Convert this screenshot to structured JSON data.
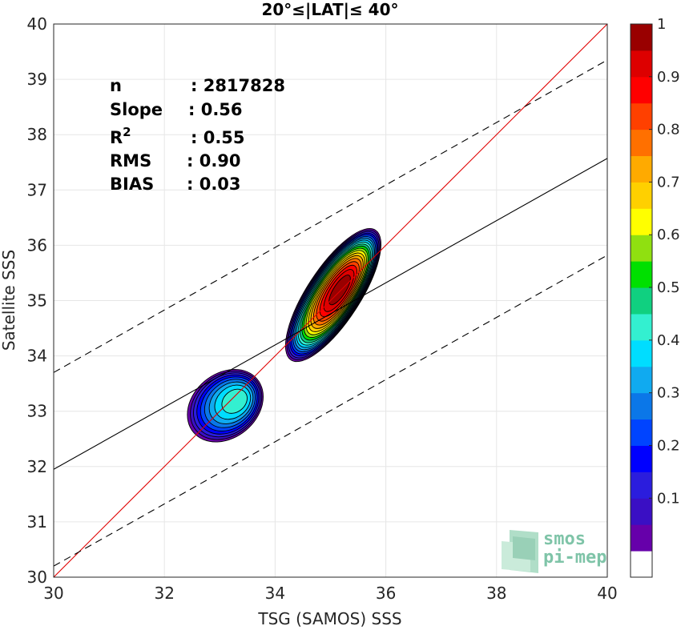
{
  "chart_data": {
    "type": "contour-density",
    "title": "20°≤|LAT|≤ 40°",
    "xlabel": "TSG (SAMOS) SSS",
    "ylabel": "Satellite SSS",
    "xlim": [
      30,
      40
    ],
    "ylim": [
      30,
      40
    ],
    "xticks": [
      "30",
      "32",
      "34",
      "36",
      "38",
      "40"
    ],
    "yticks": [
      "30",
      "31",
      "32",
      "33",
      "34",
      "35",
      "36",
      "37",
      "38",
      "39",
      "40"
    ],
    "grid": true,
    "stats": [
      {
        "label": "n",
        "value": ": 2817828"
      },
      {
        "label": "Slope",
        "value": ": 0.56"
      },
      {
        "label": "R",
        "sup": "2",
        "value": ": 0.55"
      },
      {
        "label": "RMS",
        "value": ": 0.90"
      },
      {
        "label": "BIAS",
        "value": ": 0.03"
      }
    ],
    "lines": [
      {
        "name": "one-to-one",
        "color": "#e00000",
        "style": "solid",
        "x": [
          30,
          40
        ],
        "y": [
          30,
          40
        ]
      },
      {
        "name": "regression",
        "color": "#000000",
        "style": "solid",
        "x": [
          30,
          40
        ],
        "y": [
          31.95,
          37.57
        ]
      },
      {
        "name": "upper-bound",
        "color": "#000000",
        "style": "dashed",
        "x": [
          30,
          40
        ],
        "y": [
          33.7,
          39.35
        ]
      },
      {
        "name": "lower-bound",
        "color": "#000000",
        "style": "dashed",
        "x": [
          30,
          40
        ],
        "y": [
          30.2,
          35.82
        ]
      }
    ],
    "blobs": [
      {
        "name": "main-cluster",
        "cx": 35.05,
        "cy": 35.1,
        "ax": 1.4,
        "ay": 0.48,
        "angle_deg": 57,
        "peak": 1.0,
        "peak_offset": [
          0.15,
          0.12
        ]
      },
      {
        "name": "secondary-cluster",
        "cx": 33.1,
        "cy": 33.1,
        "ax": 0.75,
        "ay": 0.58,
        "angle_deg": 40,
        "peak": 0.45,
        "peak_offset": [
          0.25,
          0.12
        ]
      }
    ],
    "colorbar": {
      "range": [
        0,
        1
      ],
      "levels": 20,
      "ticks": [
        "0.1",
        "0.2",
        "0.3",
        "0.4",
        "0.5",
        "0.6",
        "0.7",
        "0.8",
        "0.9",
        "1"
      ],
      "colors": [
        "#ffffff",
        "#6600aa",
        "#3a0fc4",
        "#2b1ddd",
        "#0000ff",
        "#0044ff",
        "#0b77e8",
        "#10aaf0",
        "#00ddff",
        "#33f0d0",
        "#10d080",
        "#00e000",
        "#90e010",
        "#ffff00",
        "#ffd000",
        "#ffaa00",
        "#ff7000",
        "#ff4000",
        "#ff0000",
        "#dd0000",
        "#990000"
      ]
    },
    "logo": {
      "line1": "smos",
      "line2": "pi-mep"
    }
  }
}
